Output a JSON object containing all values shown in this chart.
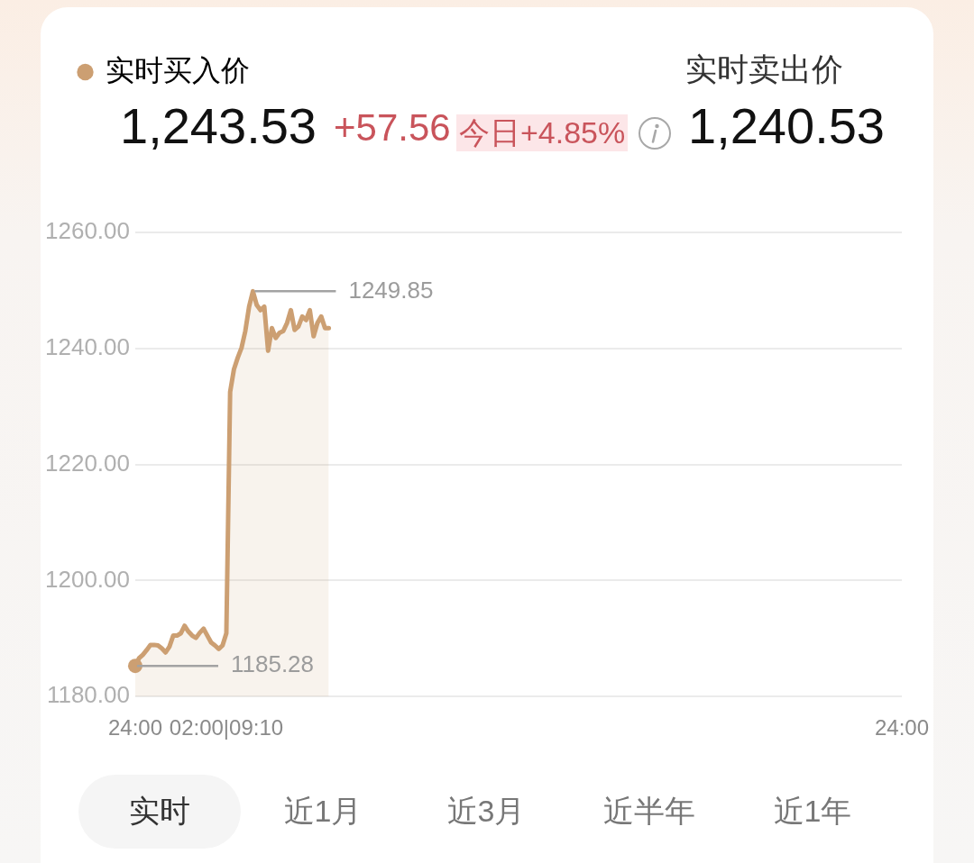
{
  "chart_data": {
    "type": "area",
    "categories": [
      "24:00",
      null,
      null,
      null,
      null,
      null,
      null,
      null,
      null,
      null,
      null,
      null,
      null,
      null,
      null,
      null,
      null,
      null,
      null,
      null,
      null,
      null,
      null,
      null,
      "02:00|09:10",
      null,
      null,
      null,
      null,
      null,
      null,
      null,
      null,
      null,
      null,
      null,
      null,
      null,
      null,
      null,
      null,
      null,
      null,
      null,
      null,
      null,
      null,
      null,
      null,
      null,
      null,
      null,
      null,
      null,
      null,
      null,
      null,
      null,
      null,
      null,
      null,
      null,
      null,
      null,
      null,
      null,
      null,
      null,
      null,
      null,
      null,
      null,
      null,
      null,
      null,
      null,
      null,
      null,
      null,
      null,
      null,
      null,
      null,
      null,
      null,
      null,
      null,
      null,
      null,
      null,
      null,
      null,
      null,
      null,
      null,
      null,
      null,
      null,
      null,
      null,
      null,
      null,
      null,
      null,
      null,
      null,
      null,
      null,
      null,
      null,
      null,
      null,
      null,
      null,
      null,
      null,
      null,
      null,
      null,
      null,
      null,
      null,
      null,
      null,
      null,
      null,
      null,
      null,
      null,
      null,
      null,
      null,
      null,
      null,
      null,
      null,
      null,
      null,
      null,
      null,
      null,
      null,
      null,
      null,
      null,
      null,
      null,
      null,
      null,
      null,
      null,
      null,
      null,
      null,
      null,
      null,
      null,
      null,
      null,
      null,
      null,
      null,
      null,
      null,
      null,
      null,
      null,
      null,
      null,
      null,
      null,
      null,
      null,
      null,
      null,
      null,
      null,
      null,
      null,
      null,
      null,
      null,
      null,
      null,
      null,
      null,
      null,
      null,
      null,
      null,
      null,
      null,
      null,
      null,
      null,
      null,
      null,
      null,
      null,
      null,
      null,
      null,
      "24:00"
    ],
    "series": [
      {
        "name": "实时买入价",
        "color": "#cc9f72",
        "values": [
          1185.28,
          1186.6,
          1187.2,
          1188.0,
          1188.9,
          1188.9,
          1188.8,
          1188.3,
          1187.6,
          1188.6,
          1190.5,
          1190.5,
          1190.9,
          1192.2,
          1191.2,
          1190.5,
          1190.1,
          1191.0,
          1191.7,
          1190.5,
          1189.3,
          1188.8,
          1188.2,
          1188.8,
          1190.9,
          1232.5,
          1236.4,
          1238.4,
          1240.1,
          1243.0,
          1247.2,
          1249.85,
          1247.5,
          1246.6,
          1247.2,
          1239.6,
          1243.5,
          1241.8,
          1242.7,
          1243.0,
          1244.4,
          1246.6,
          1243.2,
          1243.8,
          1245.5,
          1244.9,
          1246.6,
          1242.1,
          1244.4,
          1245.5,
          1243.5,
          1243.5,
          null,
          null,
          null,
          null,
          null,
          null,
          null,
          null,
          null,
          null,
          null,
          null,
          null,
          null,
          null,
          null,
          null,
          null,
          null,
          null,
          null,
          null,
          null,
          null,
          null,
          null,
          null,
          null,
          null,
          null,
          null,
          null,
          null,
          null,
          null,
          null,
          null,
          null,
          null,
          null,
          null,
          null,
          null,
          null,
          null,
          null,
          null,
          null,
          null,
          null,
          null,
          null,
          null,
          null,
          null,
          null,
          null,
          null,
          null,
          null,
          null,
          null,
          null,
          null,
          null,
          null,
          null,
          null,
          null,
          null,
          null,
          null,
          null,
          null,
          null,
          null,
          null,
          null,
          null,
          null,
          null,
          null,
          null,
          null,
          null,
          null,
          null,
          null,
          null,
          null,
          null,
          null,
          null,
          null,
          null,
          null,
          null,
          null,
          null,
          null,
          null,
          null,
          null,
          null,
          null,
          null,
          null,
          null,
          null,
          null,
          null,
          null,
          null,
          null,
          null,
          null,
          null,
          null,
          null,
          null,
          null,
          null,
          null,
          null,
          null,
          null,
          null,
          null,
          null,
          null,
          null,
          null,
          null,
          null,
          null,
          null,
          null,
          null,
          null,
          null,
          null,
          null,
          null,
          null,
          null,
          null,
          null,
          null,
          null,
          null,
          null
        ],
        "value_labels": [
          "1185.28",
          null,
          null,
          null,
          null,
          null,
          null,
          null,
          null,
          null,
          null,
          null,
          null,
          null,
          null,
          null,
          null,
          null,
          null,
          null,
          null,
          null,
          null,
          null,
          null,
          null,
          null,
          null,
          null,
          null,
          null,
          "1249.85",
          null,
          null,
          null,
          null,
          null,
          null,
          null,
          null,
          null,
          null,
          null,
          null,
          null,
          null,
          null,
          null,
          null,
          null,
          null,
          null,
          null,
          null,
          null,
          null,
          null,
          null,
          null,
          null,
          null,
          null,
          null,
          null,
          null,
          null,
          null,
          null,
          null,
          null,
          null,
          null,
          null,
          null,
          null,
          null,
          null,
          null,
          null,
          null,
          null,
          null,
          null,
          null,
          null,
          null,
          null,
          null,
          null,
          null,
          null,
          null,
          null,
          null,
          null,
          null,
          null,
          null,
          null,
          null,
          null,
          null,
          null,
          null,
          null,
          null,
          null,
          null,
          null,
          null,
          null,
          null,
          null,
          null,
          null,
          null,
          null,
          null,
          null,
          null,
          null,
          null,
          null,
          null,
          null,
          null,
          null,
          null,
          null,
          null,
          null,
          null,
          null,
          null,
          null,
          null,
          null,
          null,
          null,
          null,
          null,
          null,
          null,
          null,
          null,
          null,
          null,
          null,
          null,
          null,
          null,
          null,
          null,
          null,
          null,
          null,
          null,
          null,
          null,
          null,
          null,
          null,
          null,
          null,
          null,
          null,
          null,
          null,
          null,
          null,
          null,
          null,
          null,
          null,
          null,
          null,
          null,
          null,
          null,
          null,
          null,
          null,
          null,
          null,
          null,
          null,
          null,
          null,
          null,
          null,
          null,
          null,
          null,
          null,
          null,
          null,
          null,
          null,
          null,
          null,
          null,
          null,
          null
        ]
      },
      {
        "type": "scatter",
        "color": "#cc9f72",
        "marker": "circle",
        "values": [
          1185.28,
          null,
          null,
          null,
          null,
          null,
          null,
          null,
          null,
          null,
          null,
          null,
          null,
          null,
          null,
          null,
          null,
          null,
          null,
          null,
          null,
          null,
          null,
          null,
          null,
          null,
          null,
          null,
          null,
          null,
          null,
          null,
          null,
          null,
          null,
          null,
          null,
          null,
          null,
          null,
          null,
          null,
          null,
          null,
          null,
          null,
          null,
          null,
          null,
          null,
          null,
          null,
          null,
          null,
          null,
          null,
          null,
          null,
          null,
          null,
          null,
          null,
          null,
          null,
          null,
          null,
          null,
          null,
          null,
          null,
          null,
          null,
          null,
          null,
          null,
          null,
          null,
          null,
          null,
          null,
          null,
          null,
          null,
          null,
          null,
          null,
          null,
          null,
          null,
          null,
          null,
          null,
          null,
          null,
          null,
          null,
          null,
          null,
          null,
          null,
          null,
          null,
          null,
          null,
          null,
          null,
          null,
          null,
          null,
          null,
          null,
          null,
          null,
          null,
          null,
          null,
          null,
          null,
          null,
          null,
          null,
          null,
          null,
          null,
          null,
          null,
          null,
          null,
          null,
          null,
          null,
          null,
          null,
          null,
          null,
          null,
          null,
          null,
          null,
          null,
          null,
          null,
          null,
          null,
          null,
          null,
          null,
          null,
          null,
          null,
          null,
          null,
          null,
          null,
          null,
          null,
          null,
          null,
          null,
          null,
          null,
          null,
          null,
          null,
          null,
          null,
          null,
          null,
          null,
          null,
          null,
          null,
          null,
          null,
          null,
          null,
          null,
          null,
          null,
          null,
          null,
          null,
          null,
          null,
          null,
          null,
          null,
          null,
          null,
          null,
          null,
          null,
          null,
          null,
          null,
          null,
          null,
          null,
          null,
          null,
          null,
          null,
          null
        ]
      }
    ],
    "ylim": [
      1180,
      1260
    ],
    "yticks": [
      {
        "value": 1180,
        "label": "1180.00"
      },
      {
        "value": 1200,
        "label": "1200.00"
      },
      {
        "value": 1220,
        "label": "1220.00"
      },
      {
        "value": 1240,
        "label": "1240.00"
      },
      {
        "value": 1260,
        "label": "1260.00"
      }
    ],
    "grid": "y",
    "legend": "top left",
    "annotations": [
      "1,243.53",
      "+57.56",
      "今日+4.85%",
      "实时卖出价",
      "1,240.53",
      "实时",
      "近1月",
      "近3月",
      "近半年",
      "近1年"
    ]
  }
}
